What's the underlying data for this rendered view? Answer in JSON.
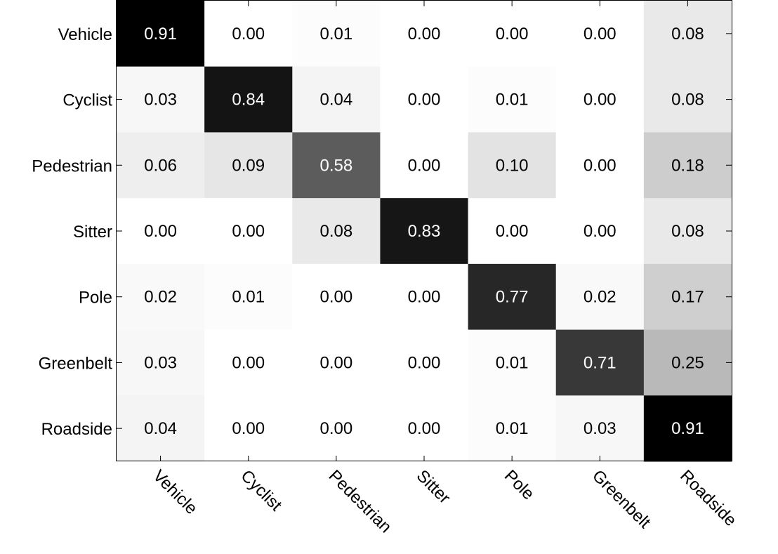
{
  "chart_data": {
    "type": "heatmap",
    "title": "",
    "xlabel": "",
    "ylabel": "",
    "rows": [
      "Vehicle",
      "Cyclist",
      "Pedestrian",
      "Sitter",
      "Pole",
      "Greenbelt",
      "Roadside"
    ],
    "columns": [
      "Vehicle",
      "Cyclist",
      "Pedestrian",
      "Sitter",
      "Pole",
      "Greenbelt",
      "Roadside"
    ],
    "values": [
      [
        0.91,
        0.0,
        0.01,
        0.0,
        0.0,
        0.0,
        0.08
      ],
      [
        0.03,
        0.84,
        0.04,
        0.0,
        0.01,
        0.0,
        0.08
      ],
      [
        0.06,
        0.09,
        0.58,
        0.0,
        0.1,
        0.0,
        0.18
      ],
      [
        0.0,
        0.0,
        0.08,
        0.83,
        0.0,
        0.0,
        0.08
      ],
      [
        0.02,
        0.01,
        0.0,
        0.0,
        0.77,
        0.02,
        0.17
      ],
      [
        0.03,
        0.0,
        0.0,
        0.0,
        0.01,
        0.71,
        0.25
      ],
      [
        0.04,
        0.0,
        0.0,
        0.0,
        0.01,
        0.03,
        0.91
      ]
    ],
    "value_range": [
      0,
      0.91
    ],
    "colormap": "gray-reversed",
    "grid": false,
    "legend": "none"
  }
}
